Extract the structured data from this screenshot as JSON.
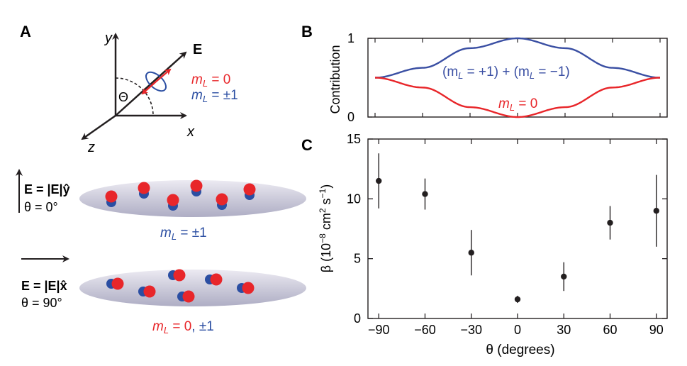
{
  "panels": {
    "a": "A",
    "b": "B",
    "c": "C"
  },
  "panel_a": {
    "axis_y": "y",
    "axis_x": "x",
    "axis_z": "z",
    "field": "E",
    "theta": "Θ",
    "ml_zero": "m",
    "ml_zero_rest": " = 0",
    "ml_pm": "m",
    "ml_pm_rest": " = ±1",
    "sub_L": "L",
    "row1_eq": "E = |E|ŷ",
    "row1_theta": "θ = 0°",
    "row1_ml_rest": " = ±1",
    "row2_eq": "E = |E|x̂",
    "row2_theta": "θ = 90°",
    "row2_ml_red_rest": " = 0",
    "row2_ml_blue": ", ±1",
    "colors": {
      "red": "#e8262a",
      "blue": "#2b4ea2",
      "ellipse": "#c9c8d8"
    }
  },
  "chart_data": [
    {
      "panel": "B",
      "type": "line",
      "ylabel": "Contribution",
      "yticks": [
        "0",
        "1"
      ],
      "ylim": [
        0,
        1
      ],
      "xlim": [
        -90,
        90
      ],
      "series": [
        {
          "name": "(m_L = +1) + (m_L = −1)",
          "color": "#3a4fa3",
          "x": [
            -90,
            -60,
            -30,
            0,
            30,
            60,
            90
          ],
          "y": [
            0.5,
            0.625,
            0.875,
            1.0,
            0.875,
            0.625,
            0.5
          ]
        },
        {
          "name": "m_L = 0",
          "color": "#e8262a",
          "x": [
            -90,
            -60,
            -30,
            0,
            30,
            60,
            90
          ],
          "y": [
            0.5,
            0.375,
            0.125,
            0.0,
            0.125,
            0.375,
            0.5
          ]
        }
      ],
      "label_blue_a": "(m",
      "label_blue_b": " = +1) + (m",
      "label_blue_c": " = −1)",
      "label_red_a": "m",
      "label_red_b": " = 0",
      "sub_L": "L"
    },
    {
      "panel": "C",
      "type": "scatter",
      "xlabel": "θ (degrees)",
      "ylabel_a": "β (10",
      "ylabel_exp1": "−8",
      "ylabel_b": " cm",
      "ylabel_exp2": "2",
      "ylabel_c": " s",
      "ylabel_exp3": "−1",
      "ylabel_d": ")",
      "xlim": [
        -97,
        97
      ],
      "ylim": [
        0,
        15
      ],
      "xticks": [
        -90,
        -60,
        -30,
        0,
        30,
        60,
        90
      ],
      "xtick_labels": [
        "−90",
        "−60",
        "−30",
        "0",
        "30",
        "60",
        "90"
      ],
      "yticks": [
        0,
        5,
        10,
        15
      ],
      "ytick_labels": [
        "0",
        "5",
        "10",
        "15"
      ],
      "points": [
        {
          "x": -90,
          "y": 11.5,
          "err_lo": 9.2,
          "err_hi": 13.8
        },
        {
          "x": -60,
          "y": 10.4,
          "err_lo": 9.1,
          "err_hi": 11.7
        },
        {
          "x": -30,
          "y": 5.5,
          "err_lo": 3.6,
          "err_hi": 7.4
        },
        {
          "x": 0,
          "y": 1.6,
          "err_lo": 1.3,
          "err_hi": 1.9
        },
        {
          "x": 30,
          "y": 3.5,
          "err_lo": 2.3,
          "err_hi": 4.7
        },
        {
          "x": 60,
          "y": 8.0,
          "err_lo": 6.6,
          "err_hi": 9.4
        },
        {
          "x": 90,
          "y": 9.0,
          "err_lo": 6.0,
          "err_hi": 12.0
        }
      ]
    }
  ]
}
